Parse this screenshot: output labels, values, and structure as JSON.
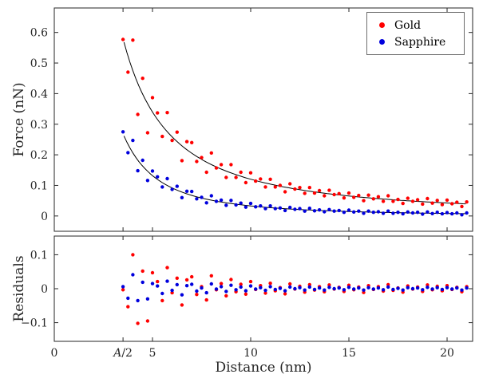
{
  "chart_data": {
    "type": "scatter",
    "xlabel": "Distance (nm)",
    "xlim": [
      0,
      21.3
    ],
    "x_ticks": [
      {
        "value": 0,
        "label": "0"
      },
      {
        "value": 3.5,
        "label": "A/2",
        "math": true
      },
      {
        "value": 5,
        "label": "5"
      },
      {
        "value": 10,
        "label": "10"
      },
      {
        "value": 15,
        "label": "15"
      },
      {
        "value": 20,
        "label": "20"
      }
    ],
    "panels": {
      "top": {
        "ylabel": "Force (nN)",
        "ylim": [
          -0.05,
          0.68
        ],
        "y_ticks": [
          {
            "value": 0,
            "label": "0"
          },
          {
            "value": 0.1,
            "label": "0.1"
          },
          {
            "value": 0.2,
            "label": "0.2"
          },
          {
            "value": 0.3,
            "label": "0.3"
          },
          {
            "value": 0.4,
            "label": "0.4"
          },
          {
            "value": 0.5,
            "label": "0.5"
          },
          {
            "value": 0.6,
            "label": "0.6"
          }
        ]
      },
      "bottom": {
        "ylabel": "Residuals",
        "ylim": [
          -0.155,
          0.155
        ],
        "y_ticks": [
          {
            "value": -0.1,
            "label": "−0.1"
          },
          {
            "value": 0,
            "label": "0"
          },
          {
            "value": 0.1,
            "label": "0.1"
          }
        ]
      }
    },
    "legend": {
      "position": "top-right",
      "entries": [
        {
          "label": "Gold",
          "color": "#ff0000"
        },
        {
          "label": "Sapphire",
          "color": "#0000dd"
        }
      ]
    },
    "grid": false,
    "series": [
      {
        "name": "Gold",
        "color": "#ff0000",
        "marker": "dot",
        "fit": {
          "model": "power_law",
          "formula": "F(x) = 3.8 * x^-1.5",
          "a": 3.8,
          "n": 1.5,
          "color": "#000000",
          "x_start": 3.55,
          "x_end": 21
        },
        "x": [
          3.5,
          3.75,
          4,
          4.25,
          4.5,
          4.75,
          5,
          5.25,
          5.5,
          5.75,
          6,
          6.25,
          6.5,
          6.75,
          7,
          7.25,
          7.5,
          7.75,
          8,
          8.25,
          8.5,
          8.75,
          9,
          9.25,
          9.5,
          9.75,
          10,
          10.25,
          10.5,
          10.75,
          11,
          11.25,
          11.5,
          11.75,
          12,
          12.25,
          12.5,
          12.75,
          13,
          13.25,
          13.5,
          13.75,
          14,
          14.25,
          14.5,
          14.75,
          15,
          15.25,
          15.5,
          15.75,
          16,
          16.25,
          16.5,
          16.75,
          17,
          17.25,
          17.5,
          17.75,
          18,
          18.25,
          18.5,
          18.75,
          19,
          19.25,
          19.5,
          19.75,
          20,
          20.25,
          20.5,
          20.75,
          21
        ],
        "force": [
          0.577,
          0.47,
          0.575,
          0.332,
          0.45,
          0.272,
          0.387,
          0.337,
          0.26,
          0.338,
          0.247,
          0.274,
          0.181,
          0.243,
          0.24,
          0.178,
          0.191,
          0.143,
          0.206,
          0.157,
          0.168,
          0.126,
          0.168,
          0.126,
          0.143,
          0.109,
          0.141,
          0.114,
          0.121,
          0.095,
          0.12,
          0.095,
          0.1,
          0.079,
          0.105,
          0.088,
          0.093,
          0.074,
          0.093,
          0.075,
          0.083,
          0.066,
          0.084,
          0.07,
          0.073,
          0.059,
          0.075,
          0.061,
          0.067,
          0.05,
          0.068,
          0.056,
          0.063,
          0.048,
          0.066,
          0.048,
          0.054,
          0.041,
          0.058,
          0.048,
          0.053,
          0.039,
          0.057,
          0.042,
          0.051,
          0.037,
          0.052,
          0.04,
          0.045,
          0.031,
          0.046
        ],
        "residuals": [
          -0.003,
          -0.053,
          0.1,
          -0.102,
          0.052,
          -0.095,
          0.047,
          0.021,
          -0.035,
          0.062,
          -0.012,
          0.031,
          -0.048,
          0.026,
          0.035,
          -0.017,
          0.006,
          -0.033,
          0.038,
          -0.003,
          0.015,
          -0.021,
          0.027,
          -0.009,
          0.013,
          -0.016,
          0.021,
          -0.002,
          0.009,
          -0.013,
          0.016,
          -0.006,
          0.003,
          -0.015,
          0.014,
          -0.001,
          0.007,
          -0.01,
          0.012,
          -0.004,
          0.006,
          -0.009,
          0.011,
          -0.001,
          0.004,
          -0.008,
          0.01,
          -0.003,
          0.005,
          -0.011,
          0.009,
          -0.002,
          0.006,
          -0.007,
          0.012,
          -0.005,
          0.002,
          -0.01,
          0.008,
          -0.001,
          0.005,
          -0.008,
          0.011,
          -0.003,
          0.007,
          -0.006,
          0.009,
          -0.002,
          0.004,
          -0.009,
          0.006
        ]
      },
      {
        "name": "Sapphire",
        "color": "#0000dd",
        "marker": "dot",
        "fit": {
          "model": "power_law",
          "formula": "F(x) = 3.3 * x^-2",
          "a": 3.3,
          "n": 2,
          "color": "#000000",
          "x_start": 3.55,
          "x_end": 21
        },
        "x": [
          3.5,
          3.75,
          4,
          4.25,
          4.5,
          4.75,
          5,
          5.25,
          5.5,
          5.75,
          6,
          6.25,
          6.5,
          6.75,
          7,
          7.25,
          7.5,
          7.75,
          8,
          8.25,
          8.5,
          8.75,
          9,
          9.25,
          9.5,
          9.75,
          10,
          10.25,
          10.5,
          10.75,
          11,
          11.25,
          11.5,
          11.75,
          12,
          12.25,
          12.5,
          12.75,
          13,
          13.25,
          13.5,
          13.75,
          14,
          14.25,
          14.5,
          14.75,
          15,
          15.25,
          15.5,
          15.75,
          16,
          16.25,
          16.5,
          16.75,
          17,
          17.25,
          17.5,
          17.75,
          18,
          18.25,
          18.5,
          18.75,
          19,
          19.25,
          19.5,
          19.75,
          20,
          20.25,
          20.5,
          20.75,
          21
        ],
        "force": [
          0.275,
          0.207,
          0.247,
          0.148,
          0.182,
          0.116,
          0.147,
          0.128,
          0.095,
          0.122,
          0.087,
          0.097,
          0.06,
          0.081,
          0.08,
          0.056,
          0.061,
          0.043,
          0.066,
          0.048,
          0.052,
          0.035,
          0.051,
          0.036,
          0.042,
          0.029,
          0.041,
          0.03,
          0.033,
          0.024,
          0.033,
          0.024,
          0.026,
          0.018,
          0.028,
          0.022,
          0.024,
          0.016,
          0.025,
          0.017,
          0.02,
          0.014,
          0.021,
          0.016,
          0.018,
          0.012,
          0.019,
          0.013,
          0.016,
          0.009,
          0.016,
          0.012,
          0.014,
          0.009,
          0.016,
          0.009,
          0.012,
          0.007,
          0.013,
          0.01,
          0.012,
          0.006,
          0.013,
          0.008,
          0.012,
          0.007,
          0.011,
          0.007,
          0.01,
          0.004,
          0.01
        ],
        "residuals": [
          0.006,
          -0.028,
          0.041,
          -0.035,
          0.019,
          -0.03,
          0.015,
          0.008,
          -0.014,
          0.022,
          -0.005,
          0.012,
          -0.018,
          0.009,
          0.013,
          -0.007,
          0.002,
          -0.012,
          0.014,
          -0.001,
          0.006,
          -0.008,
          0.01,
          -0.003,
          0.005,
          -0.006,
          0.008,
          -0.001,
          0.003,
          -0.005,
          0.006,
          -0.002,
          0.001,
          -0.006,
          0.005,
          0.0,
          0.003,
          -0.004,
          0.005,
          -0.002,
          0.002,
          -0.004,
          0.004,
          0.0,
          0.002,
          -0.003,
          0.004,
          -0.001,
          0.002,
          -0.004,
          0.003,
          -0.001,
          0.002,
          -0.003,
          0.005,
          -0.002,
          0.001,
          -0.004,
          0.003,
          0.0,
          0.002,
          -0.003,
          0.004,
          -0.001,
          0.003,
          -0.002,
          0.003,
          -0.001,
          0.002,
          -0.004,
          0.002
        ]
      }
    ]
  }
}
